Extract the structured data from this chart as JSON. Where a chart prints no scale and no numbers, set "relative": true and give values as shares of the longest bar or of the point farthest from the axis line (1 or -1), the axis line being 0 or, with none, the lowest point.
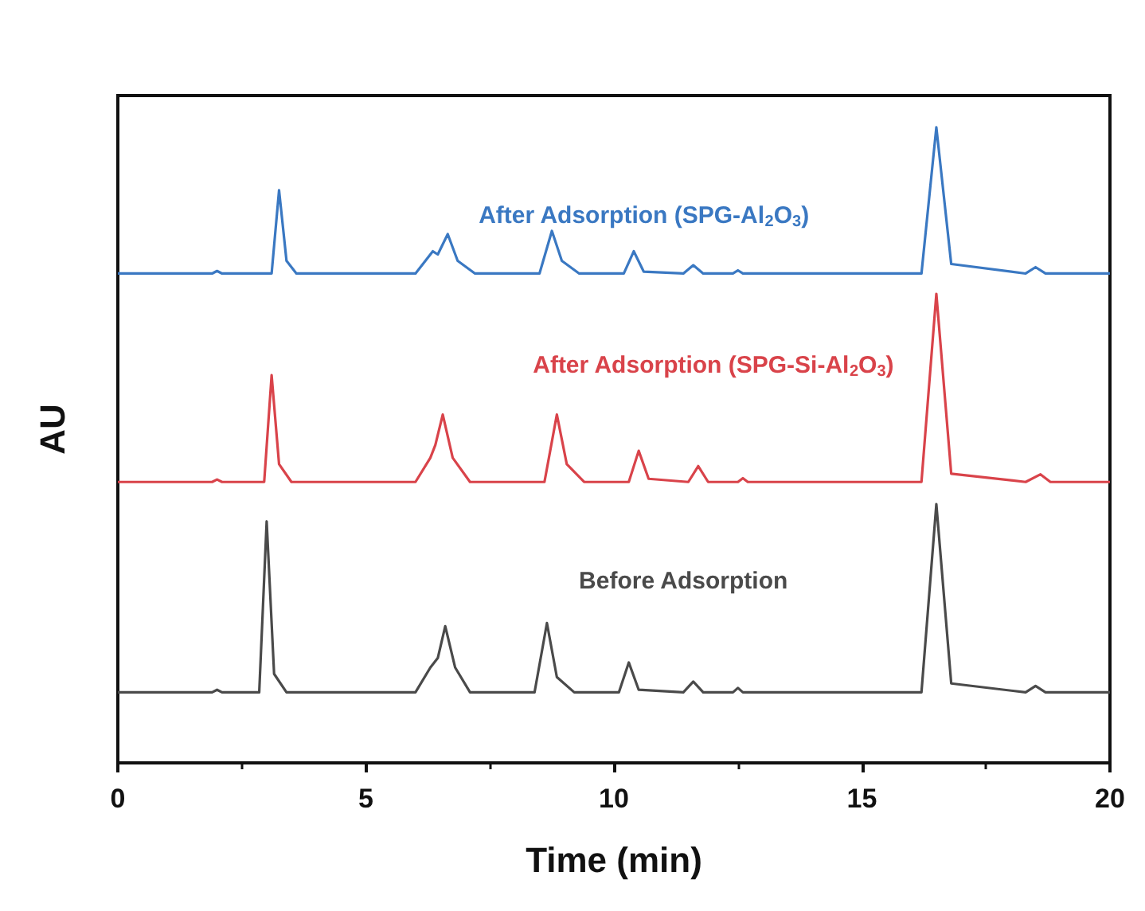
{
  "chart_data": {
    "type": "line",
    "relative": true,
    "xlabel": "Time (min)",
    "ylabel": "AU",
    "xlim": [
      0,
      20
    ],
    "xticks": [
      0,
      5,
      10,
      15,
      20
    ],
    "grid": false,
    "legend": false,
    "marker": "none",
    "line_style": "solid",
    "series": [
      {
        "name": "After Adsorption (SPG-Al$_{2}$O$_{3}$)",
        "color": "#3a78c2",
        "x": [
          0,
          1.9,
          2.0,
          2.1,
          3.1,
          3.25,
          3.4,
          3.6,
          6.0,
          6.35,
          6.45,
          6.65,
          6.85,
          7.2,
          8.5,
          8.75,
          8.95,
          9.3,
          10.2,
          10.4,
          10.6,
          11.4,
          11.6,
          11.8,
          12.4,
          12.5,
          12.6,
          16.2,
          16.5,
          16.8,
          18.3,
          18.5,
          18.7,
          20
        ],
        "values": [
          0.77,
          0.77,
          0.774,
          0.77,
          0.77,
          0.901,
          0.79,
          0.77,
          0.77,
          0.805,
          0.8,
          0.832,
          0.79,
          0.77,
          0.77,
          0.837,
          0.79,
          0.77,
          0.77,
          0.805,
          0.773,
          0.77,
          0.783,
          0.77,
          0.77,
          0.775,
          0.77,
          0.77,
          1,
          0.785,
          0.77,
          0.78,
          0.77,
          0.77
        ]
      },
      {
        "name": "After Adsorption (SPG-Si-Al$_{2}$O$_{3}$)",
        "color": "#d9434a",
        "x": [
          0,
          1.9,
          2.0,
          2.1,
          2.95,
          3.1,
          3.25,
          3.5,
          6.0,
          6.3,
          6.4,
          6.55,
          6.75,
          7.1,
          8.6,
          8.85,
          9.05,
          9.4,
          10.3,
          10.5,
          10.7,
          11.5,
          11.7,
          11.9,
          12.5,
          12.6,
          12.7,
          16.2,
          16.5,
          16.8,
          18.3,
          18.6,
          18.8,
          20
        ],
        "values": [
          0.442,
          0.442,
          0.446,
          0.442,
          0.442,
          0.61,
          0.47,
          0.442,
          0.442,
          0.48,
          0.5,
          0.548,
          0.48,
          0.442,
          0.442,
          0.548,
          0.47,
          0.442,
          0.442,
          0.491,
          0.447,
          0.442,
          0.467,
          0.442,
          0.442,
          0.448,
          0.442,
          0.442,
          0.738,
          0.455,
          0.442,
          0.454,
          0.442,
          0.442
        ]
      },
      {
        "name": "Before Adsorption",
        "color": "#4a4a4a",
        "x": [
          0,
          1.9,
          2.0,
          2.1,
          2.85,
          3.0,
          3.15,
          3.4,
          6.0,
          6.3,
          6.45,
          6.6,
          6.8,
          7.1,
          8.4,
          8.65,
          8.85,
          9.2,
          10.1,
          10.3,
          10.5,
          11.4,
          11.6,
          11.8,
          12.4,
          12.5,
          12.6,
          16.2,
          16.5,
          16.8,
          18.3,
          18.5,
          18.7,
          20
        ],
        "values": [
          0.111,
          0.111,
          0.115,
          0.111,
          0.111,
          0.38,
          0.14,
          0.111,
          0.111,
          0.15,
          0.165,
          0.215,
          0.15,
          0.111,
          0.111,
          0.22,
          0.135,
          0.111,
          0.111,
          0.158,
          0.115,
          0.111,
          0.128,
          0.111,
          0.111,
          0.118,
          0.111,
          0.111,
          0.407,
          0.125,
          0.111,
          0.121,
          0.111,
          0.111
        ]
      }
    ]
  }
}
